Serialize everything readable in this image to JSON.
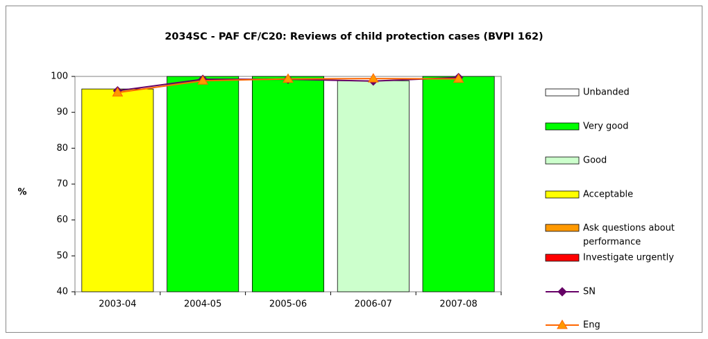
{
  "chart_data": {
    "type": "bar",
    "title": "2034SC - PAF CF/C20: Reviews of child protection cases (BVPI 162)",
    "ylabel": "%",
    "categories": [
      "2003-04",
      "2004-05",
      "2005-06",
      "2006-07",
      "2007-08"
    ],
    "ylim": [
      40,
      100
    ],
    "yticks": [
      40,
      50,
      60,
      70,
      80,
      90,
      100
    ],
    "grid": false,
    "legend": "right",
    "series": [
      {
        "name": "Unbanded",
        "color": "#ffffff",
        "kind": "bar",
        "values": [
          null,
          null,
          null,
          null,
          null
        ]
      },
      {
        "name": "Very good",
        "color": "#00ff00",
        "kind": "bar",
        "values": [
          null,
          100,
          100,
          null,
          100
        ]
      },
      {
        "name": "Good",
        "color": "#ccffcc",
        "kind": "bar",
        "values": [
          null,
          null,
          null,
          98.8,
          null
        ]
      },
      {
        "name": "Acceptable",
        "color": "#ffff00",
        "kind": "bar",
        "values": [
          96.5,
          null,
          null,
          null,
          null
        ]
      },
      {
        "name": "Ask questions about performance",
        "color": "#ff9900",
        "kind": "bar",
        "values": [
          null,
          null,
          null,
          null,
          null
        ]
      },
      {
        "name": "Investigate urgently",
        "color": "#ff0000",
        "kind": "bar",
        "values": [
          null,
          null,
          null,
          null,
          null
        ]
      },
      {
        "name": "SN",
        "color": "#660066",
        "kind": "line",
        "marker": "diamond",
        "values": [
          96,
          99.2,
          99.2,
          98.7,
          99.7
        ]
      },
      {
        "name": "Eng",
        "color": "#ff6600",
        "kind": "line",
        "marker": "triangle",
        "values": [
          95.5,
          98.8,
          99.3,
          99.4,
          99.3
        ]
      }
    ]
  }
}
